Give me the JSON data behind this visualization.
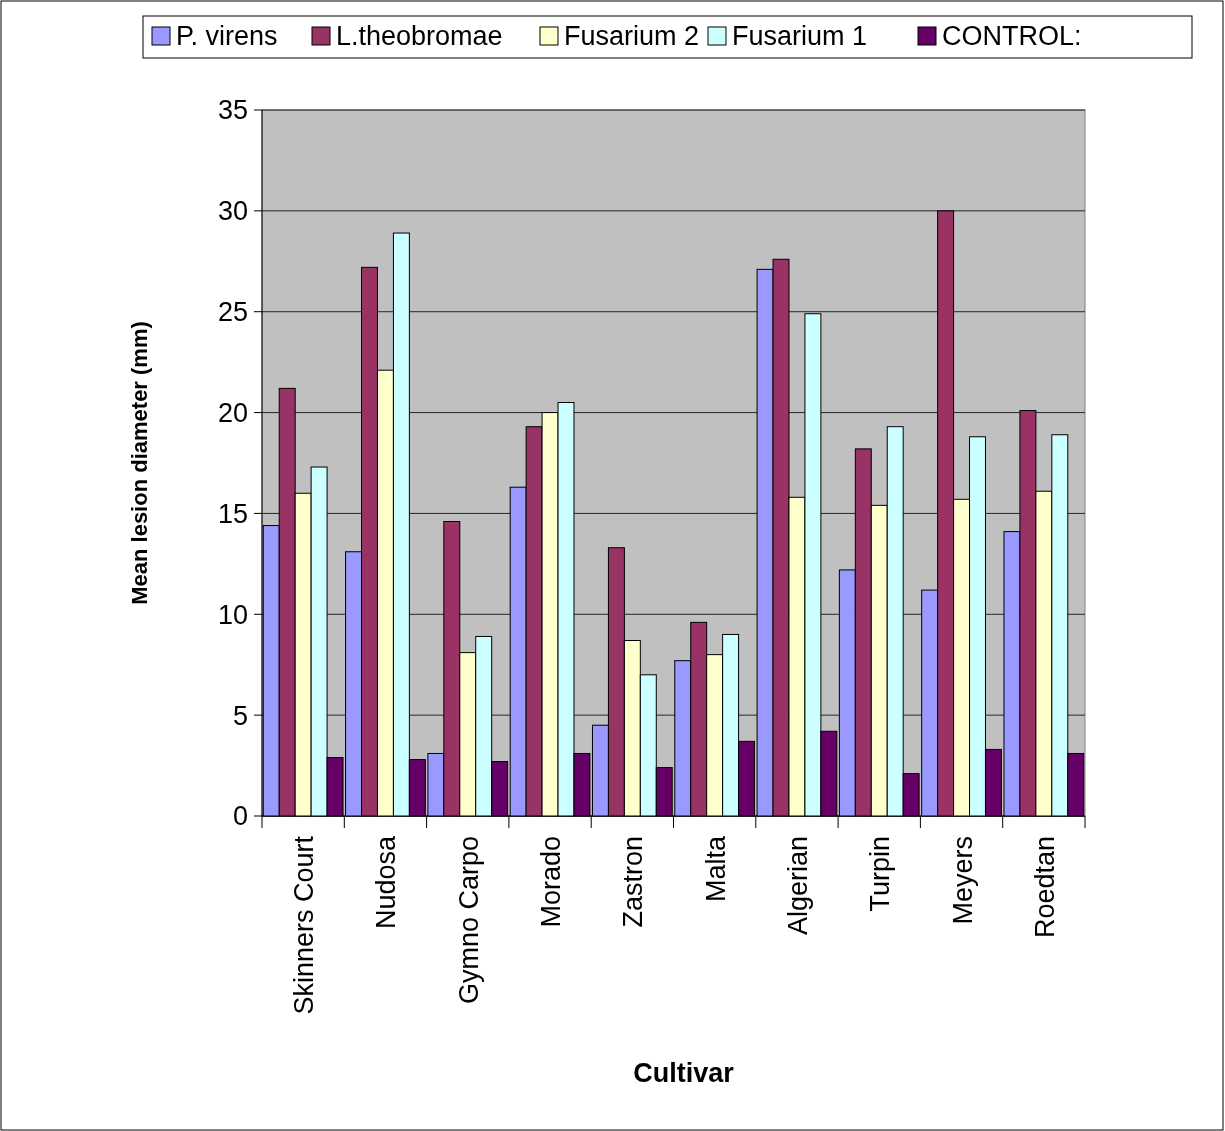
{
  "chart_data": {
    "type": "bar",
    "xlabel": "Cultivar",
    "ylabel": "Mean lesion diameter (mm)",
    "categories": [
      "Skinners Court",
      "Nudosa",
      "Gymno Carpo",
      "Morado",
      "Zastron",
      "Malta",
      "Algerian",
      "Turpin",
      "Meyers",
      "Roedtan"
    ],
    "series": [
      {
        "name": "P. virens",
        "color": "#9999ff",
        "values": [
          14.4,
          13.1,
          3.1,
          16.3,
          4.5,
          7.7,
          27.1,
          12.2,
          11.2,
          14.1
        ]
      },
      {
        "name": "L.theobromae",
        "color": "#993366",
        "values": [
          21.2,
          27.2,
          14.6,
          19.3,
          13.3,
          9.6,
          27.6,
          18.2,
          30.0,
          20.1
        ]
      },
      {
        "name": "Fusarium 2",
        "color": "#ffffcc",
        "values": [
          16.0,
          22.1,
          8.1,
          20.0,
          8.7,
          8.0,
          15.8,
          15.4,
          15.7,
          16.1
        ]
      },
      {
        "name": "Fusarium 1",
        "color": "#ccffff",
        "values": [
          17.3,
          28.9,
          8.9,
          20.5,
          7.0,
          9.0,
          24.9,
          19.3,
          18.8,
          18.9
        ]
      },
      {
        "name": "CONTROL:",
        "color": "#660066",
        "values": [
          2.9,
          2.8,
          2.7,
          3.1,
          2.4,
          3.7,
          4.2,
          2.1,
          3.3,
          3.1
        ]
      }
    ],
    "ylim": [
      0,
      35
    ],
    "yticks": [
      0,
      5,
      10,
      15,
      20,
      25,
      30,
      35
    ],
    "grid": "y",
    "legend": "top"
  }
}
